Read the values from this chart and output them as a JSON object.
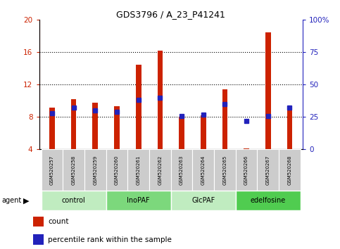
{
  "title": "GDS3796 / A_23_P41241",
  "samples": [
    "GSM520257",
    "GSM520258",
    "GSM520259",
    "GSM520260",
    "GSM520261",
    "GSM520262",
    "GSM520263",
    "GSM520264",
    "GSM520265",
    "GSM520266",
    "GSM520267",
    "GSM520268"
  ],
  "count_values": [
    9.2,
    10.2,
    9.8,
    9.3,
    14.5,
    16.2,
    8.0,
    8.2,
    11.4,
    4.1,
    18.5,
    9.0
  ],
  "percentile_values": [
    28,
    32,
    30,
    29,
    38,
    40,
    26,
    27,
    35,
    22,
    26,
    32
  ],
  "groups": [
    {
      "label": "control",
      "start": 0,
      "end": 3,
      "color": "#c0ecc0"
    },
    {
      "label": "InoPAF",
      "start": 3,
      "end": 6,
      "color": "#7cd87c"
    },
    {
      "label": "GlcPAF",
      "start": 6,
      "end": 9,
      "color": "#c0ecc0"
    },
    {
      "label": "edelfosine",
      "start": 9,
      "end": 12,
      "color": "#50cc50"
    }
  ],
  "ylim_left": [
    4,
    20
  ],
  "ylim_right": [
    0,
    100
  ],
  "yticks_left": [
    4,
    8,
    12,
    16,
    20
  ],
  "yticks_right": [
    0,
    25,
    50,
    75,
    100
  ],
  "bar_color": "#cc2200",
  "dot_color": "#2222bb",
  "bar_width": 0.25,
  "dot_size": 18,
  "left_label_color": "#cc2200",
  "right_label_color": "#2222bb",
  "tick_label_bg": "#cccccc",
  "agent_label": "agent",
  "legend_count": "count",
  "legend_pct": "percentile rank within the sample"
}
